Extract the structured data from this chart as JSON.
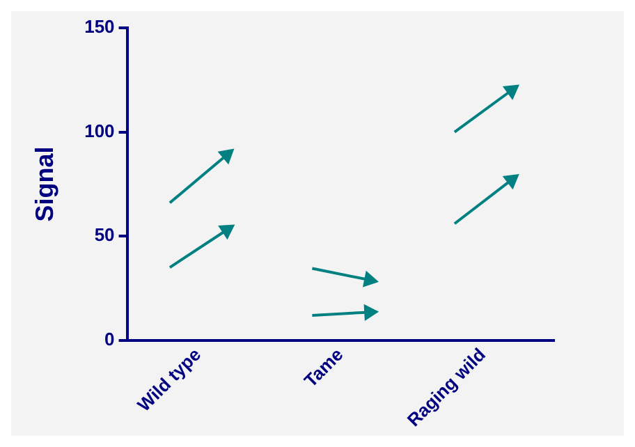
{
  "chart_data": {
    "type": "line",
    "ylabel": "Signal",
    "categories": [
      null,
      null,
      "Wild type",
      null,
      null,
      null,
      null,
      "Tame",
      null,
      null,
      null,
      null,
      "Raging wild",
      null,
      null
    ],
    "ylim": [
      0,
      150
    ],
    "yticks": [
      0,
      50,
      100,
      150
    ],
    "grid": false,
    "legend": false,
    "marker": "triangle",
    "line_style": "solid",
    "series": [
      {
        "color": "#008080",
        "values": [
          null,
          35,
          null,
          53,
          null,
          null,
          null,
          null,
          null,
          null,
          null,
          null,
          null,
          null,
          null
        ]
      },
      {
        "color": "#008080",
        "values": [
          null,
          66,
          null,
          89,
          null,
          null,
          null,
          null,
          null,
          null,
          null,
          null,
          null,
          null,
          null
        ]
      },
      {
        "color": "#008080",
        "values": [
          null,
          null,
          null,
          null,
          null,
          null,
          34.5,
          null,
          29,
          null,
          null,
          null,
          null,
          null,
          null
        ]
      },
      {
        "color": "#008080",
        "values": [
          null,
          null,
          null,
          null,
          null,
          null,
          12,
          null,
          13.5,
          null,
          null,
          null,
          null,
          null,
          null
        ]
      },
      {
        "color": "#008080",
        "values": [
          null,
          null,
          null,
          null,
          null,
          null,
          null,
          null,
          null,
          null,
          null,
          56,
          null,
          77,
          null
        ]
      },
      {
        "color": "#008080",
        "values": [
          null,
          null,
          null,
          null,
          null,
          null,
          null,
          null,
          null,
          null,
          null,
          100,
          null,
          120,
          null
        ]
      }
    ]
  }
}
